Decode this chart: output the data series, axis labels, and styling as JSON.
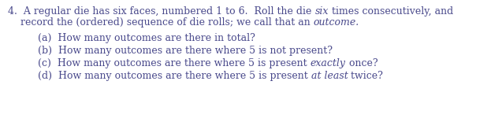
{
  "background_color": "#ffffff",
  "text_color": "#4a4a8c",
  "figsize": [
    6.37,
    1.5
  ],
  "dpi": 100,
  "font_family": "DejaVu Serif",
  "fontsize": 9.0,
  "line1_prefix": "4.  A regular die has six faces, numbered 1 to 6.  Roll the die ",
  "line1_italic": "six",
  "line1_after": " times consecutively, and",
  "line2_prefix": "    record the (ordered) sequence of die rolls; we call that an ",
  "line2_italic": "outcome.",
  "line2_after": "",
  "suba": "(a)  How many outcomes are there in total?",
  "subb": "(b)  How many outcomes are there where 5 is not present?",
  "subc_pre": "(c)  How many outcomes are there where 5 is present ",
  "subc_italic": "exactly",
  "subc_after": " once?",
  "subd_pre": "(d)  How many outcomes are there where 5 is present ",
  "subd_italic": "at least",
  "subd_after": " twice?"
}
